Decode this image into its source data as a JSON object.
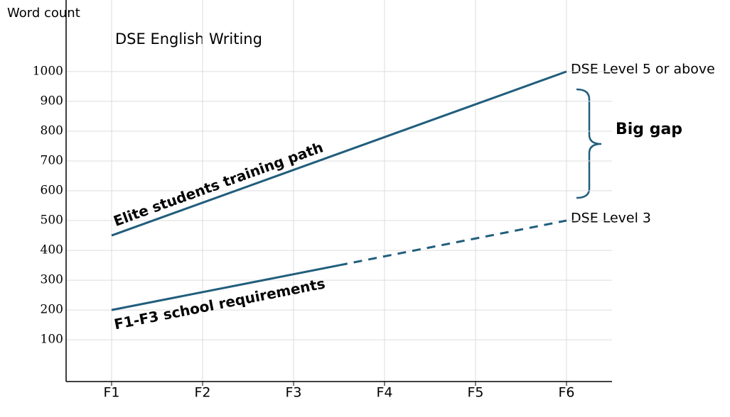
{
  "chart_data": {
    "type": "line",
    "title": "DSE English Writing",
    "y_label": "Word count",
    "xlim": [
      0.5,
      6.5
    ],
    "xticks": [
      {
        "value": 1,
        "label": "F1"
      },
      {
        "value": 2,
        "label": "F2"
      },
      {
        "value": 3,
        "label": "F3"
      },
      {
        "value": 4,
        "label": "F4"
      },
      {
        "value": 5,
        "label": "F5"
      },
      {
        "value": 6,
        "label": "F6"
      }
    ],
    "ylim": [
      -40,
      1240
    ],
    "yticks": [
      100,
      200,
      300,
      400,
      500,
      600,
      700,
      800,
      900,
      1000
    ],
    "grid": true,
    "series": [
      {
        "name": "Elite students training path",
        "color": "#215e7c",
        "x": [
          1,
          6
        ],
        "values": [
          450,
          1000
        ],
        "dashed": false
      },
      {
        "name": "F1-F3 school requirements",
        "color": "#215e7c",
        "x": [
          1,
          3.5
        ],
        "values": [
          200,
          350
        ],
        "dashed": false
      },
      {
        "color": "#215e7c",
        "x": [
          3.5,
          6
        ],
        "values": [
          350,
          500
        ],
        "dashed": true
      }
    ],
    "annotations": [
      "DSE Level 5 or above",
      "DSE Level 3",
      "Big gap"
    ]
  }
}
